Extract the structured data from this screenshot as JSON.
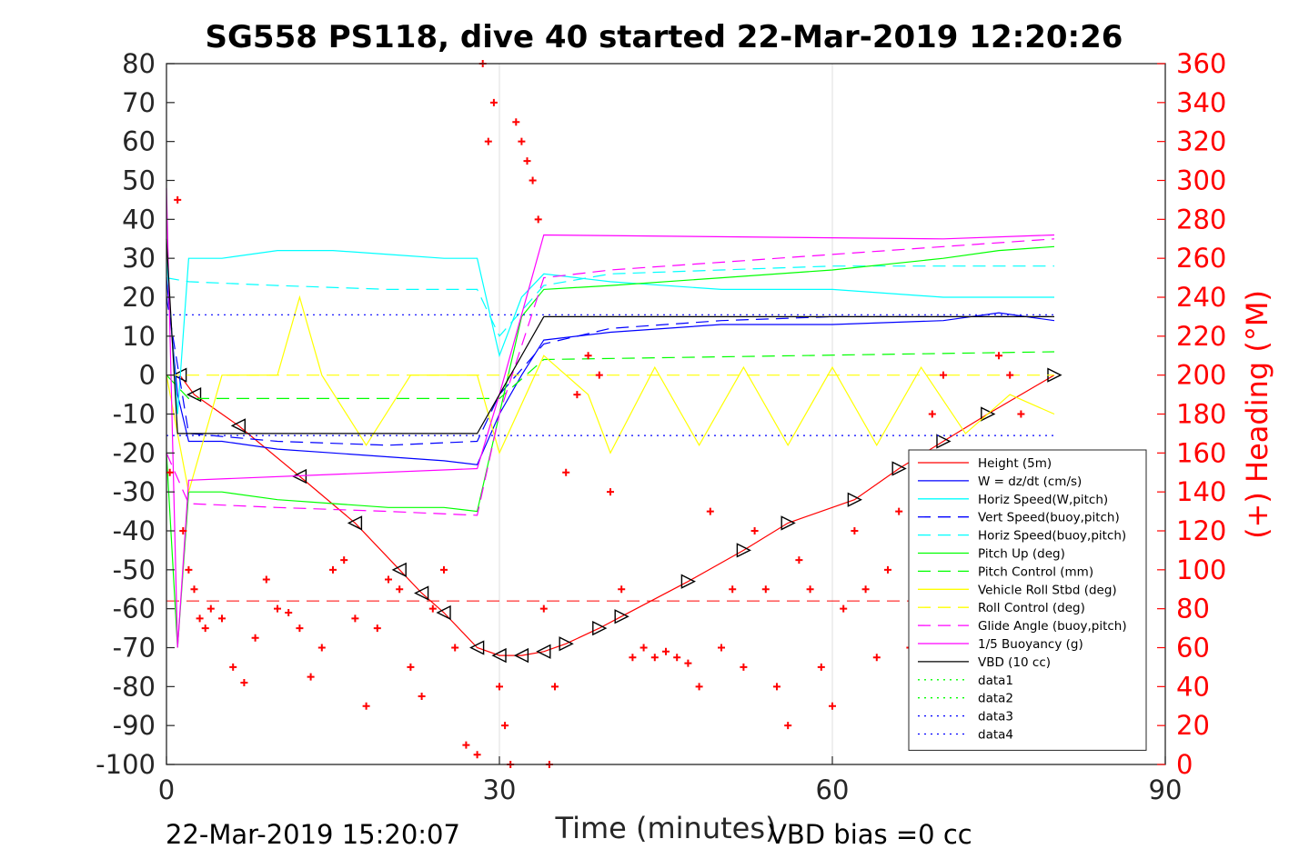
{
  "chart_data": {
    "type": "line",
    "title": "SG558 PS118, dive 40 started 22-Mar-2019 12:20:26",
    "xlabel": "Time (minutes)",
    "ylabel": "",
    "ylabel_right": "(+) Heading (°M)",
    "xlim": [
      0,
      90
    ],
    "ylim": [
      -100,
      80
    ],
    "ylim_right": [
      0,
      360
    ],
    "xticks": [
      "0",
      "30",
      "60",
      "90"
    ],
    "yticks": [
      "80",
      "70",
      "60",
      "50",
      "40",
      "30",
      "20",
      "10",
      "0",
      "-10",
      "-20",
      "-30",
      "-40",
      "-50",
      "-60",
      "-70",
      "-80",
      "-90",
      "-100"
    ],
    "yticks_right": [
      "360",
      "340",
      "320",
      "300",
      "280",
      "260",
      "240",
      "220",
      "200",
      "180",
      "160",
      "140",
      "120",
      "100",
      "80",
      "60",
      "40",
      "20",
      "0"
    ],
    "grid": true,
    "legend_position": "bottom-right",
    "footer_left": "22-Mar-2019 15:20:07",
    "footer_right": "VBD bias =0 cc",
    "series": [
      {
        "name": "Height (5m)",
        "color": "#ff0000",
        "style": "solid",
        "marker": "triangle",
        "x": [
          1.2,
          2.5,
          6.5,
          12,
          17,
          21,
          23,
          25,
          28,
          30,
          32,
          34,
          36,
          39,
          41,
          47,
          52,
          56,
          62,
          66,
          70,
          74,
          80
        ],
        "y": [
          0,
          -5,
          -13,
          -26,
          -38,
          -50,
          -56,
          -61,
          -70,
          -72,
          -72,
          -71,
          -69,
          -65,
          -62,
          -53,
          -45,
          -38,
          -32,
          -24,
          -17,
          -10,
          0
        ]
      },
      {
        "name": "W = dz/dt (cm/s)",
        "color": "#0000ff",
        "style": "solid",
        "x": [
          0,
          1,
          2,
          5,
          10,
          15,
          20,
          25,
          28,
          30,
          32,
          34,
          40,
          50,
          60,
          70,
          75,
          80
        ],
        "y": [
          25,
          -5,
          -17,
          -17,
          -19,
          -20,
          -21,
          -22,
          -23,
          -10,
          0,
          9,
          11,
          13,
          13,
          14,
          16,
          14
        ]
      },
      {
        "name": "Horiz Speed(W,pitch)",
        "color": "#00ffff",
        "style": "solid",
        "x": [
          0,
          1,
          2,
          5,
          10,
          15,
          20,
          25,
          28,
          30,
          32,
          34,
          40,
          50,
          60,
          70,
          75,
          80
        ],
        "y": [
          30,
          -10,
          30,
          30,
          32,
          32,
          31,
          30,
          30,
          5,
          20,
          26,
          24,
          22,
          22,
          20,
          20,
          20
        ]
      },
      {
        "name": "Vert Speed(buoy,pitch)",
        "color": "#0000ff",
        "style": "dashed",
        "x": [
          0,
          2,
          10,
          20,
          28,
          30,
          34,
          40,
          50,
          60,
          70,
          80
        ],
        "y": [
          20,
          -15,
          -17,
          -18,
          -17,
          -5,
          8,
          12,
          14,
          15,
          15,
          15
        ]
      },
      {
        "name": "Horiz Speed(buoy,pitch)",
        "color": "#00ffff",
        "style": "dashed",
        "x": [
          0,
          2,
          10,
          20,
          28,
          30,
          34,
          40,
          50,
          60,
          70,
          80
        ],
        "y": [
          25,
          24,
          23,
          22,
          22,
          10,
          23,
          26,
          27,
          28,
          28,
          28
        ]
      },
      {
        "name": "Pitch Up (deg)",
        "color": "#00ff00",
        "style": "solid",
        "x": [
          0,
          1,
          2,
          5,
          10,
          15,
          20,
          25,
          28,
          30,
          32,
          34,
          40,
          50,
          60,
          70,
          75,
          80
        ],
        "y": [
          -20,
          -70,
          -30,
          -30,
          -32,
          -33,
          -34,
          -34,
          -35,
          -10,
          15,
          22,
          23,
          25,
          27,
          30,
          32,
          33
        ]
      },
      {
        "name": "Pitch Control (mm)",
        "color": "#00ff00",
        "style": "dashed",
        "x": [
          0,
          2,
          28,
          30,
          34,
          80
        ],
        "y": [
          0,
          -6,
          -6,
          -6,
          4,
          6
        ]
      },
      {
        "name": "Vehicle Roll Stbd (deg)",
        "color": "#ffff00",
        "style": "solid",
        "x": [
          0,
          2,
          5,
          10,
          12,
          14,
          18,
          22,
          28,
          30,
          34,
          38,
          40,
          44,
          48,
          52,
          56,
          60,
          64,
          68,
          72,
          76,
          80
        ],
        "y": [
          0,
          -30,
          0,
          0,
          20,
          0,
          -18,
          0,
          0,
          -20,
          5,
          -5,
          -20,
          2,
          -18,
          2,
          -18,
          2,
          -18,
          2,
          -15,
          -5,
          -10
        ]
      },
      {
        "name": "Roll Control (deg)",
        "color": "#ffff00",
        "style": "dashed",
        "x": [
          0,
          80
        ],
        "y": [
          0,
          0
        ]
      },
      {
        "name": "Glide Angle (buoy,pitch)",
        "color": "#ff00ff",
        "style": "dashed",
        "x": [
          0,
          2,
          10,
          20,
          28,
          30,
          34,
          40,
          50,
          60,
          70,
          80
        ],
        "y": [
          -20,
          -33,
          -34,
          -35,
          -36,
          -10,
          25,
          27,
          29,
          31,
          33,
          35
        ]
      },
      {
        "name": "1/5 Buoyancy (g)",
        "color": "#ff00ff",
        "style": "solid",
        "x": [
          0,
          1,
          2,
          28,
          30,
          34,
          70,
          80
        ],
        "y": [
          48,
          -70,
          -27,
          -24,
          -5,
          36,
          35,
          36
        ]
      },
      {
        "name": "VBD (10 cc)",
        "color": "#000000",
        "style": "solid",
        "x": [
          0,
          1,
          2,
          28,
          30,
          34,
          80
        ],
        "y": [
          35,
          -15,
          -15,
          -15,
          -5,
          15,
          15
        ]
      },
      {
        "name": "data1",
        "color": "#00ff00",
        "style": "dotted",
        "x": [],
        "y": []
      },
      {
        "name": "data2",
        "color": "#00ff00",
        "style": "dotted",
        "x": [],
        "y": []
      },
      {
        "name": "data3",
        "color": "#0000ff",
        "style": "dotted",
        "x": [
          0,
          80
        ],
        "y": [
          15.5,
          15.5
        ]
      },
      {
        "name": "data4",
        "color": "#0000ff",
        "style": "dotted",
        "x": [
          0,
          80
        ],
        "y": [
          -15.5,
          -15.5
        ]
      }
    ],
    "ref_lines": [
      {
        "color": "#ff0000",
        "style": "dashed",
        "x": [
          0,
          80
        ],
        "y": [
          -58,
          -58
        ]
      }
    ],
    "heading_series": {
      "name": "",
      "color": "#ff0000",
      "marker": "plus",
      "axis": "right",
      "x": [
        0.3,
        1,
        1.5,
        2,
        2.5,
        3,
        3.5,
        4,
        5,
        6,
        7,
        8,
        9,
        10,
        11,
        12,
        13,
        14,
        15,
        16,
        17,
        18,
        19,
        20,
        21,
        22,
        23,
        24,
        25,
        26,
        27,
        28,
        28.5,
        29,
        29.5,
        30,
        30.5,
        31,
        31.5,
        32,
        32.5,
        33,
        33.5,
        34,
        34.5,
        35,
        36,
        37,
        38,
        39,
        40,
        41,
        42,
        43,
        44,
        45,
        46,
        47,
        48,
        49,
        50,
        51,
        52,
        53,
        54,
        55,
        56,
        57,
        58,
        59,
        60,
        61,
        62,
        63,
        64,
        65,
        66,
        67,
        68,
        69,
        70,
        71,
        72,
        73,
        74,
        75,
        76,
        77,
        78,
        79
      ],
      "y": [
        150,
        290,
        120,
        100,
        90,
        75,
        70,
        80,
        75,
        50,
        42,
        65,
        95,
        80,
        78,
        70,
        45,
        60,
        100,
        105,
        75,
        30,
        70,
        95,
        90,
        50,
        35,
        80,
        100,
        60,
        10,
        5,
        360,
        320,
        340,
        40,
        20,
        0,
        330,
        320,
        310,
        300,
        280,
        80,
        0,
        40,
        150,
        190,
        210,
        200,
        140,
        90,
        55,
        60,
        55,
        58,
        55,
        52,
        40,
        130,
        60,
        90,
        50,
        120,
        90,
        40,
        20,
        105,
        90,
        50,
        30,
        80,
        120,
        90,
        55,
        100,
        130,
        60,
        40,
        180,
        200,
        150,
        130,
        110,
        100,
        210,
        200,
        180,
        120,
        100
      ]
    }
  }
}
